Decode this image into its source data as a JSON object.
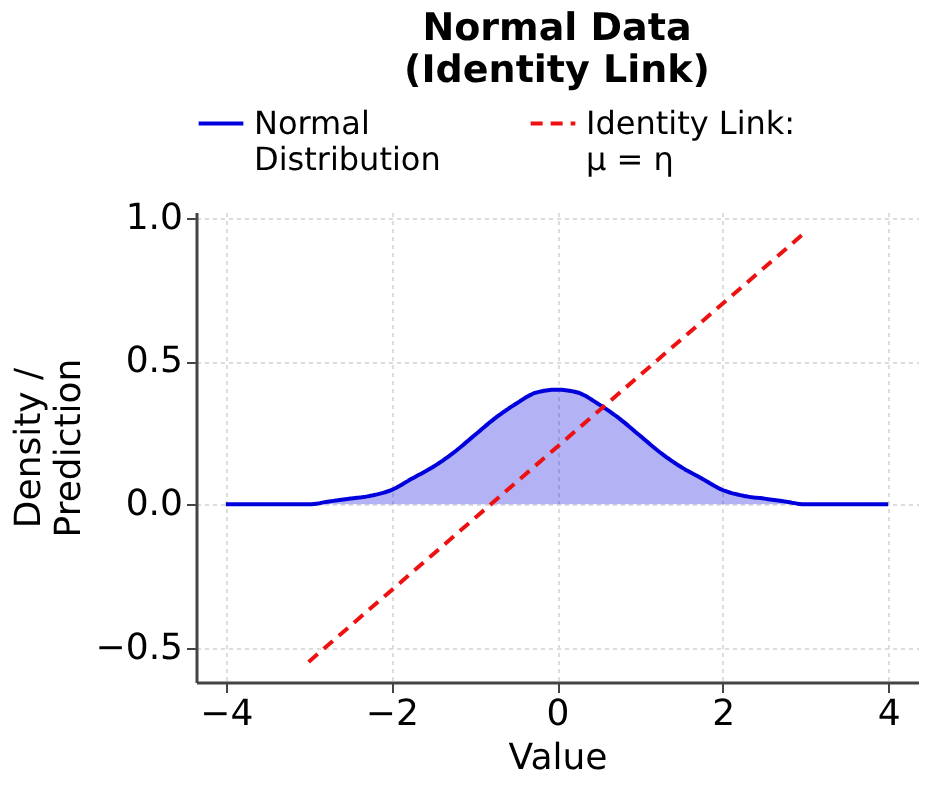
{
  "chart_data": {
    "type": "line",
    "title": "Normal Data\n(Identity Link)",
    "xlabel": "Value",
    "ylabel": "Density /\nPrediction",
    "series": [
      {
        "name": "Normal\nDistribution",
        "type": "area",
        "color": "#0000dd",
        "x": [
          -4,
          -3.75,
          -3.5,
          -3.25,
          -3,
          -2.75,
          -2.5,
          -2.25,
          -2,
          -1.75,
          -1.5,
          -1.25,
          -1,
          -0.75,
          -0.5,
          -0.25,
          0,
          0.25,
          0.5,
          0.75,
          1,
          1.25,
          1.5,
          1.75,
          2,
          2.25,
          2.5,
          2.75,
          3,
          3.25,
          3.5,
          3.75,
          4
        ],
        "values": [
          0.0,
          0.0,
          0.0,
          0.0,
          0.0,
          0.01,
          0.02,
          0.03,
          0.05,
          0.09,
          0.13,
          0.18,
          0.24,
          0.3,
          0.35,
          0.39,
          0.4,
          0.39,
          0.35,
          0.3,
          0.24,
          0.18,
          0.13,
          0.09,
          0.05,
          0.03,
          0.02,
          0.01,
          0.0,
          0.0,
          0.0,
          0.0,
          0.0
        ]
      },
      {
        "name": "Identity Link:\nμ = η",
        "line_style": "dashed",
        "color": "#ee1111",
        "x": [
          -3,
          3
        ],
        "values": [
          -0.55,
          0.95
        ]
      }
    ],
    "xlim": [
      -4.36,
      4.36
    ],
    "ylim": [
      -0.62,
      1.02
    ],
    "xticks": [
      -4,
      -2,
      0,
      2,
      4
    ],
    "yticks": [
      {
        "value": -0.5,
        "label": "−0.5"
      },
      {
        "value": 0,
        "label": "0.0"
      },
      {
        "value": 0.5,
        "label": "0.5"
      },
      {
        "value": 1,
        "label": "1.0"
      }
    ],
    "grid": true,
    "legend": "top"
  }
}
